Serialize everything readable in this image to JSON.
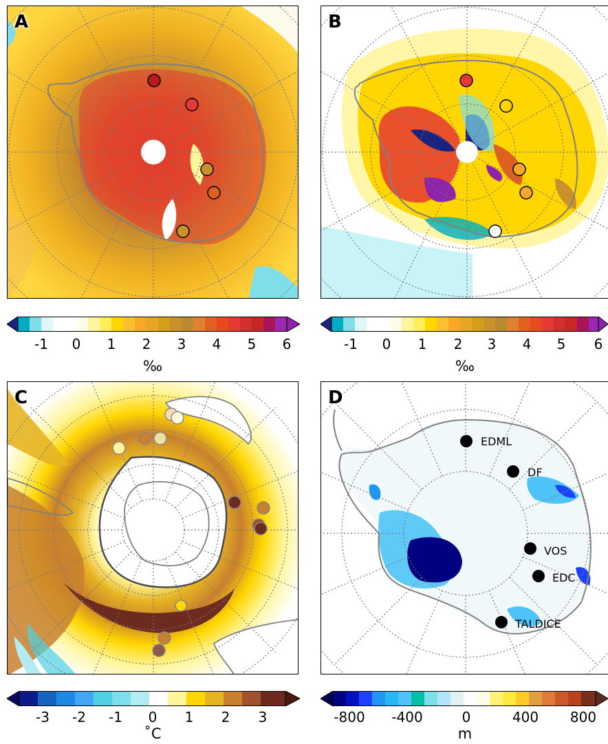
{
  "panels": {
    "a": {
      "label": "A"
    },
    "b": {
      "label": "B"
    },
    "c": {
      "label": "C"
    },
    "d": {
      "label": "D"
    }
  },
  "colorbars": {
    "a": {
      "ticks": [
        "-1",
        "0",
        "1",
        "2",
        "3",
        "4",
        "5",
        "6"
      ],
      "unit": "‰"
    },
    "b": {
      "ticks": [
        "-1",
        "0",
        "1",
        "2",
        "3",
        "4",
        "5",
        "6"
      ],
      "unit": "‰"
    },
    "c": {
      "ticks": [
        "-3",
        "-2",
        "-1",
        "0",
        "1",
        "2",
        "3"
      ],
      "unit": "˚C"
    },
    "d": {
      "ticks": [
        "-800",
        "-400",
        "0",
        "400",
        "800"
      ],
      "unit": "m"
    }
  },
  "sites": [
    "EDML",
    "DF",
    "VOS",
    "EDC",
    "TALDICE"
  ],
  "colors": {
    "iso": [
      "#1a237e",
      "#00acc1",
      "#80deea",
      "#ffffff",
      "#fff59d",
      "#ffd600",
      "#f9a825",
      "#d4a017",
      "#c0892b",
      "#e06020",
      "#e53935",
      "#b71c1c",
      "#8e24aa"
    ],
    "temp": [
      "#0d1b8a",
      "#1565c0",
      "#42a5f5",
      "#4dd0e1",
      "#b2ebf2",
      "#ffffff",
      "#fff59d",
      "#ffd600",
      "#e6b422",
      "#c8802e",
      "#a0522d",
      "#6d2b1f"
    ],
    "elev": [
      "#000080",
      "#1e40ff",
      "#2196f3",
      "#4fc3f7",
      "#b3e5fc",
      "#ffffff",
      "#fff176",
      "#ffca28",
      "#e07b39",
      "#b8431e",
      "#5d2a1f"
    ]
  }
}
